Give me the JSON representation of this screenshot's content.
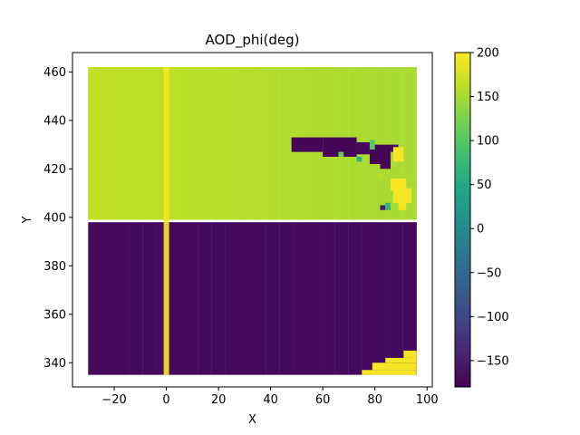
{
  "chart_data": {
    "type": "heatmap",
    "title": "AOD_phi(deg)",
    "xlabel": "X",
    "ylabel": "Y",
    "xlim": [
      -36,
      102
    ],
    "ylim": [
      330,
      468
    ],
    "x_ticks": [
      -20,
      0,
      20,
      40,
      60,
      80,
      100
    ],
    "x_tick_labels": [
      "−20",
      "0",
      "20",
      "40",
      "60",
      "80",
      "100"
    ],
    "y_ticks": [
      340,
      360,
      380,
      400,
      420,
      440,
      460
    ],
    "y_tick_labels": [
      "340",
      "360",
      "380",
      "400",
      "420",
      "440",
      "460"
    ],
    "colormap": "viridis",
    "colorbar": {
      "range": [
        -180,
        200
      ],
      "ticks": [
        -150,
        -100,
        -50,
        0,
        50,
        100,
        150,
        200
      ],
      "tick_labels": [
        "−150",
        "−100",
        "−50",
        "0",
        "50",
        "100",
        "150",
        "200"
      ]
    },
    "grid": false,
    "data_extent": {
      "x": [
        -30,
        96
      ],
      "y": [
        335,
        462
      ]
    },
    "regions": [
      {
        "name": "upper",
        "x": [
          -30,
          96
        ],
        "y": [
          399,
          462
        ],
        "value_left": 165,
        "value_right": 150
      },
      {
        "name": "lower",
        "x": [
          -30,
          96
        ],
        "y": [
          335,
          398
        ],
        "value_bottom": -168,
        "value_top": -172
      },
      {
        "name": "vertical stripe",
        "x": [
          -1,
          1
        ],
        "y": [
          335,
          462
        ],
        "value": 195
      }
    ],
    "patches": [
      {
        "x": [
          48,
          60
        ],
        "y": [
          427,
          433
        ],
        "value": -175
      },
      {
        "x": [
          60,
          73
        ],
        "y": [
          425,
          433
        ],
        "value": -175
      },
      {
        "x": [
          73,
          78
        ],
        "y": [
          426,
          431
        ],
        "value": -170
      },
      {
        "x": [
          78,
          86
        ],
        "y": [
          422,
          430
        ],
        "value": -175
      },
      {
        "x": [
          86,
          89
        ],
        "y": [
          427,
          430
        ],
        "value": -170
      },
      {
        "x": [
          82,
          86
        ],
        "y": [
          420,
          423
        ],
        "value": -175
      },
      {
        "x": [
          87,
          91
        ],
        "y": [
          423,
          429
        ],
        "value": 195
      },
      {
        "x": [
          86,
          92
        ],
        "y": [
          411,
          416
        ],
        "value": 195
      },
      {
        "x": [
          87,
          94
        ],
        "y": [
          406,
          412
        ],
        "value": 195
      },
      {
        "x": [
          89,
          92
        ],
        "y": [
          403,
          406
        ],
        "value": 195
      },
      {
        "x": [
          82,
          84
        ],
        "y": [
          403,
          405
        ],
        "value": -150
      },
      {
        "x": [
          73,
          75
        ],
        "y": [
          423,
          425
        ],
        "value": 60
      },
      {
        "x": [
          78,
          80
        ],
        "y": [
          428,
          432
        ],
        "value": 100
      },
      {
        "x": [
          66,
          68
        ],
        "y": [
          425,
          427
        ],
        "value": 110
      },
      {
        "x": [
          84,
          86
        ],
        "y": [
          403,
          406
        ],
        "value": 70
      },
      {
        "x": [
          81,
          83
        ],
        "y": [
          416,
          418
        ],
        "value": 160
      },
      {
        "x": [
          75,
          96
        ],
        "y": [
          335,
          337
        ],
        "value": 195
      },
      {
        "x": [
          79,
          96
        ],
        "y": [
          337,
          340
        ],
        "value": 195
      },
      {
        "x": [
          84,
          96
        ],
        "y": [
          340,
          342
        ],
        "value": 195
      },
      {
        "x": [
          91,
          96
        ],
        "y": [
          342,
          345
        ],
        "value": 195
      }
    ]
  }
}
